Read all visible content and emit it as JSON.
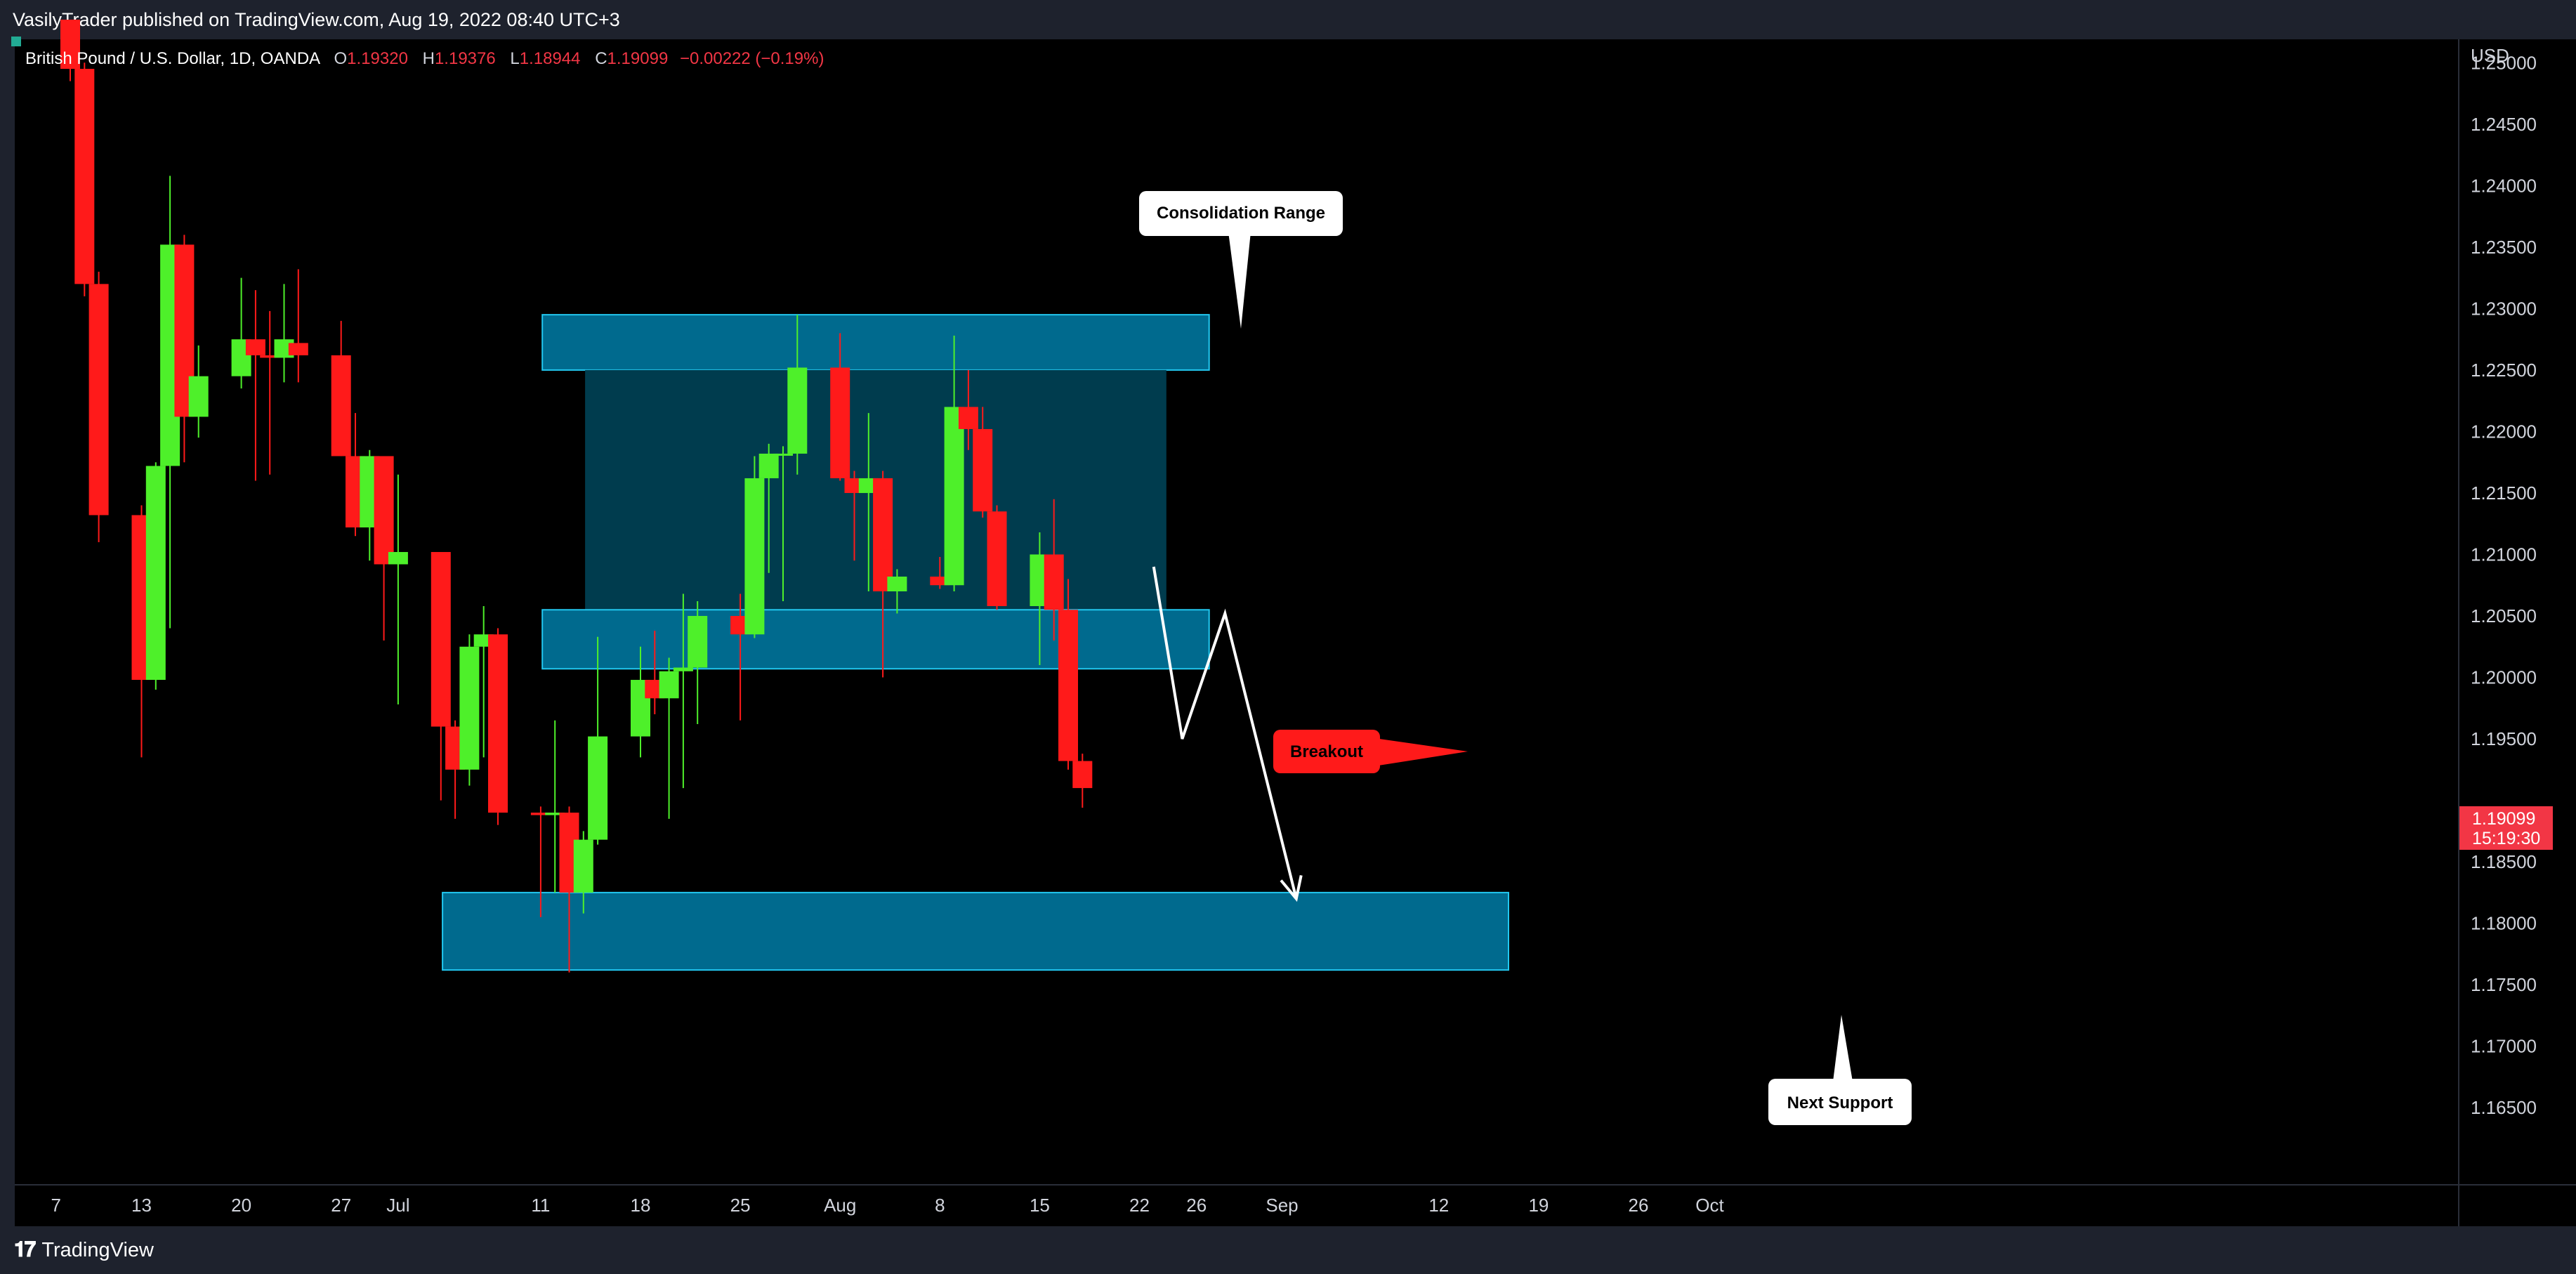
{
  "header": {
    "published_text": "VasilyTrader published on TradingView.com, Aug 19, 2022 08:40 UTC+3"
  },
  "legend": {
    "symbol": "British Pound / U.S. Dollar, 1D, OANDA",
    "o_label": "O",
    "o_value": "1.19320",
    "h_label": "H",
    "h_value": "1.19376",
    "l_label": "L",
    "l_value": "1.18944",
    "c_label": "C",
    "c_value": "1.19099",
    "change": "−0.00222 (−0.19%)"
  },
  "price_scale": {
    "currency": "USD",
    "current_price": "1.19099",
    "countdown": "15:19:30"
  },
  "footer": {
    "brand": "TradingView"
  },
  "colors": {
    "up": "#4ef02a",
    "down": "#ff1a1a",
    "zone_fill": "#006a8e",
    "zone_border": "#22c8f0",
    "range_fill": "#003c4e",
    "price_tag": "#f23645"
  },
  "annotations": {
    "consolidation": "Consolidation Range",
    "breakout": "Breakout",
    "next_support": "Next Support"
  },
  "chart_data": {
    "type": "candlestick",
    "symbol": "GBPUSD",
    "timeframe": "1D",
    "y_range": [
      1.1605,
      1.2535
    ],
    "y_ticks": [
      "1.25000",
      "1.24500",
      "1.24000",
      "1.23500",
      "1.23000",
      "1.22500",
      "1.22000",
      "1.21500",
      "1.21000",
      "1.20500",
      "1.20000",
      "1.19500",
      "1.18500",
      "1.18000",
      "1.17500",
      "1.17000",
      "1.16500"
    ],
    "x_ticks": [
      "7",
      "13",
      "20",
      "27",
      "Jul",
      "11",
      "18",
      "25",
      "Aug",
      "8",
      "15",
      "22",
      "26",
      "Sep",
      "12",
      "19",
      "26",
      "Oct"
    ],
    "candles": [
      {
        "date": "Jun 8",
        "open": 1.2535,
        "high": 1.2535,
        "low": 1.2485,
        "close": 1.2495
      },
      {
        "date": "Jun 9",
        "open": 1.2495,
        "high": 1.25,
        "low": 1.231,
        "close": 1.232
      },
      {
        "date": "Jun 10",
        "open": 1.232,
        "high": 1.233,
        "low": 1.211,
        "close": 1.2132
      },
      {
        "date": "Jun 13",
        "open": 1.2132,
        "high": 1.214,
        "low": 1.1935,
        "close": 1.1998
      },
      {
        "date": "Jun 14",
        "open": 1.1998,
        "high": 1.2175,
        "low": 1.199,
        "close": 1.2172
      },
      {
        "date": "Jun 15",
        "open": 1.2172,
        "high": 1.2408,
        "low": 1.204,
        "close": 1.2352
      },
      {
        "date": "Jun 16",
        "open": 1.2352,
        "high": 1.236,
        "low": 1.2175,
        "close": 1.2212
      },
      {
        "date": "Jun 17",
        "open": 1.2212,
        "high": 1.227,
        "low": 1.2195,
        "close": 1.2245
      },
      {
        "date": "Jun 20",
        "open": 1.2245,
        "high": 1.2325,
        "low": 1.2235,
        "close": 1.2275
      },
      {
        "date": "Jun 21",
        "open": 1.2275,
        "high": 1.2315,
        "low": 1.216,
        "close": 1.2262
      },
      {
        "date": "Jun 22",
        "open": 1.2262,
        "high": 1.2298,
        "low": 1.2165,
        "close": 1.226
      },
      {
        "date": "Jun 23",
        "open": 1.226,
        "high": 1.232,
        "low": 1.224,
        "close": 1.2275
      },
      {
        "date": "Jun 24",
        "open": 1.2272,
        "high": 1.2332,
        "low": 1.224,
        "close": 1.2262
      },
      {
        "date": "Jun 27",
        "open": 1.2262,
        "high": 1.229,
        "low": 1.218,
        "close": 1.218
      },
      {
        "date": "Jun 28",
        "open": 1.218,
        "high": 1.2215,
        "low": 1.2115,
        "close": 1.2122
      },
      {
        "date": "Jun 29",
        "open": 1.2122,
        "high": 1.2185,
        "low": 1.2095,
        "close": 1.218
      },
      {
        "date": "Jun 30",
        "open": 1.218,
        "high": 1.218,
        "low": 1.203,
        "close": 1.2092
      },
      {
        "date": "Jul 1",
        "open": 1.2092,
        "high": 1.2165,
        "low": 1.1978,
        "close": 1.2102
      },
      {
        "date": "Jul 4",
        "open": 1.2102,
        "high": 1.2102,
        "low": 1.19,
        "close": 1.196
      },
      {
        "date": "Jul 5",
        "open": 1.196,
        "high": 1.1965,
        "low": 1.1885,
        "close": 1.1925
      },
      {
        "date": "Jul 6",
        "open": 1.1925,
        "high": 1.2035,
        "low": 1.1912,
        "close": 1.2025
      },
      {
        "date": "Jul 7",
        "open": 1.2025,
        "high": 1.2058,
        "low": 1.1935,
        "close": 1.2035
      },
      {
        "date": "Jul 8",
        "open": 1.2035,
        "high": 1.204,
        "low": 1.188,
        "close": 1.189
      },
      {
        "date": "Jul 11",
        "open": 1.189,
        "high": 1.1895,
        "low": 1.1805,
        "close": 1.1888
      },
      {
        "date": "Jul 12",
        "open": 1.1888,
        "high": 1.1965,
        "low": 1.1825,
        "close": 1.189
      },
      {
        "date": "Jul 13",
        "open": 1.189,
        "high": 1.1895,
        "low": 1.176,
        "close": 1.1825
      },
      {
        "date": "Jul 14",
        "open": 1.1825,
        "high": 1.1875,
        "low": 1.1808,
        "close": 1.1868
      },
      {
        "date": "Jul 15",
        "open": 1.1868,
        "high": 1.2033,
        "low": 1.1864,
        "close": 1.1952
      },
      {
        "date": "Jul 18",
        "open": 1.1952,
        "high": 1.2025,
        "low": 1.1935,
        "close": 1.1998
      },
      {
        "date": "Jul 19",
        "open": 1.1998,
        "high": 1.2038,
        "low": 1.197,
        "close": 1.1983
      },
      {
        "date": "Jul 20",
        "open": 1.1983,
        "high": 1.2016,
        "low": 1.1885,
        "close": 1.2005
      },
      {
        "date": "Jul 21",
        "open": 1.2005,
        "high": 1.2068,
        "low": 1.191,
        "close": 1.2008
      },
      {
        "date": "Jul 22",
        "open": 1.2008,
        "high": 1.2062,
        "low": 1.1962,
        "close": 1.205
      },
      {
        "date": "Jul 25",
        "open": 1.205,
        "high": 1.2068,
        "low": 1.1965,
        "close": 1.2035
      },
      {
        "date": "Jul 26",
        "open": 1.2035,
        "high": 1.218,
        "low": 1.2032,
        "close": 1.2162
      },
      {
        "date": "Jul 27",
        "open": 1.2162,
        "high": 1.219,
        "low": 1.2085,
        "close": 1.2182
      },
      {
        "date": "Jul 28",
        "open": 1.2182,
        "high": 1.2188,
        "low": 1.2062,
        "close": 1.2182
      },
      {
        "date": "Jul 29",
        "open": 1.2182,
        "high": 1.2295,
        "low": 1.2165,
        "close": 1.2252
      },
      {
        "date": "Aug 1",
        "open": 1.2252,
        "high": 1.228,
        "low": 1.216,
        "close": 1.2162
      },
      {
        "date": "Aug 2",
        "open": 1.2162,
        "high": 1.2168,
        "low": 1.2095,
        "close": 1.215
      },
      {
        "date": "Aug 3",
        "open": 1.215,
        "high": 1.2215,
        "low": 1.207,
        "close": 1.2162
      },
      {
        "date": "Aug 4",
        "open": 1.2162,
        "high": 1.2168,
        "low": 1.2,
        "close": 1.207
      },
      {
        "date": "Aug 5",
        "open": 1.207,
        "high": 1.2088,
        "low": 1.2052,
        "close": 1.2082
      },
      {
        "date": "Aug 8",
        "open": 1.2082,
        "high": 1.2098,
        "low": 1.2072,
        "close": 1.2075
      },
      {
        "date": "Aug 9",
        "open": 1.2075,
        "high": 1.2278,
        "low": 1.207,
        "close": 1.222
      },
      {
        "date": "Aug 10",
        "open": 1.222,
        "high": 1.225,
        "low": 1.2185,
        "close": 1.2202
      },
      {
        "date": "Aug 11",
        "open": 1.2202,
        "high": 1.222,
        "low": 1.213,
        "close": 1.2135
      },
      {
        "date": "Aug 12",
        "open": 1.2135,
        "high": 1.214,
        "low": 1.2055,
        "close": 1.2058
      },
      {
        "date": "Aug 15",
        "open": 1.2058,
        "high": 1.2118,
        "low": 1.201,
        "close": 1.21
      },
      {
        "date": "Aug 16",
        "open": 1.21,
        "high": 1.2145,
        "low": 1.203,
        "close": 1.2055
      },
      {
        "date": "Aug 17",
        "open": 1.2055,
        "high": 1.208,
        "low": 1.1925,
        "close": 1.1932
      },
      {
        "date": "Aug 18",
        "open": 1.1932,
        "high": 1.1938,
        "low": 1.1894,
        "close": 1.191
      }
    ],
    "zones": [
      {
        "role": "resistance",
        "from_date": "Jul 12",
        "to_date": "Aug 26",
        "top": 1.2295,
        "bottom": 1.225
      },
      {
        "role": "consolidation",
        "from_date": "Jul 15",
        "to_date": "Aug 23",
        "top": 1.225,
        "bottom": 1.2055
      },
      {
        "role": "support",
        "from_date": "Jul 12",
        "to_date": "Aug 26",
        "top": 1.2055,
        "bottom": 1.2007
      },
      {
        "role": "next_support",
        "from_date": "Jul 5",
        "to_date": "Sep 16",
        "top": 1.1825,
        "bottom": 1.1762
      }
    ],
    "projection_path": [
      {
        "date": "Aug 23",
        "price": 1.209
      },
      {
        "date": "Aug 25",
        "price": 1.195
      },
      {
        "date": "Aug 28",
        "price": 1.2052
      },
      {
        "date": "Sep 2",
        "price": 1.182
      }
    ]
  }
}
